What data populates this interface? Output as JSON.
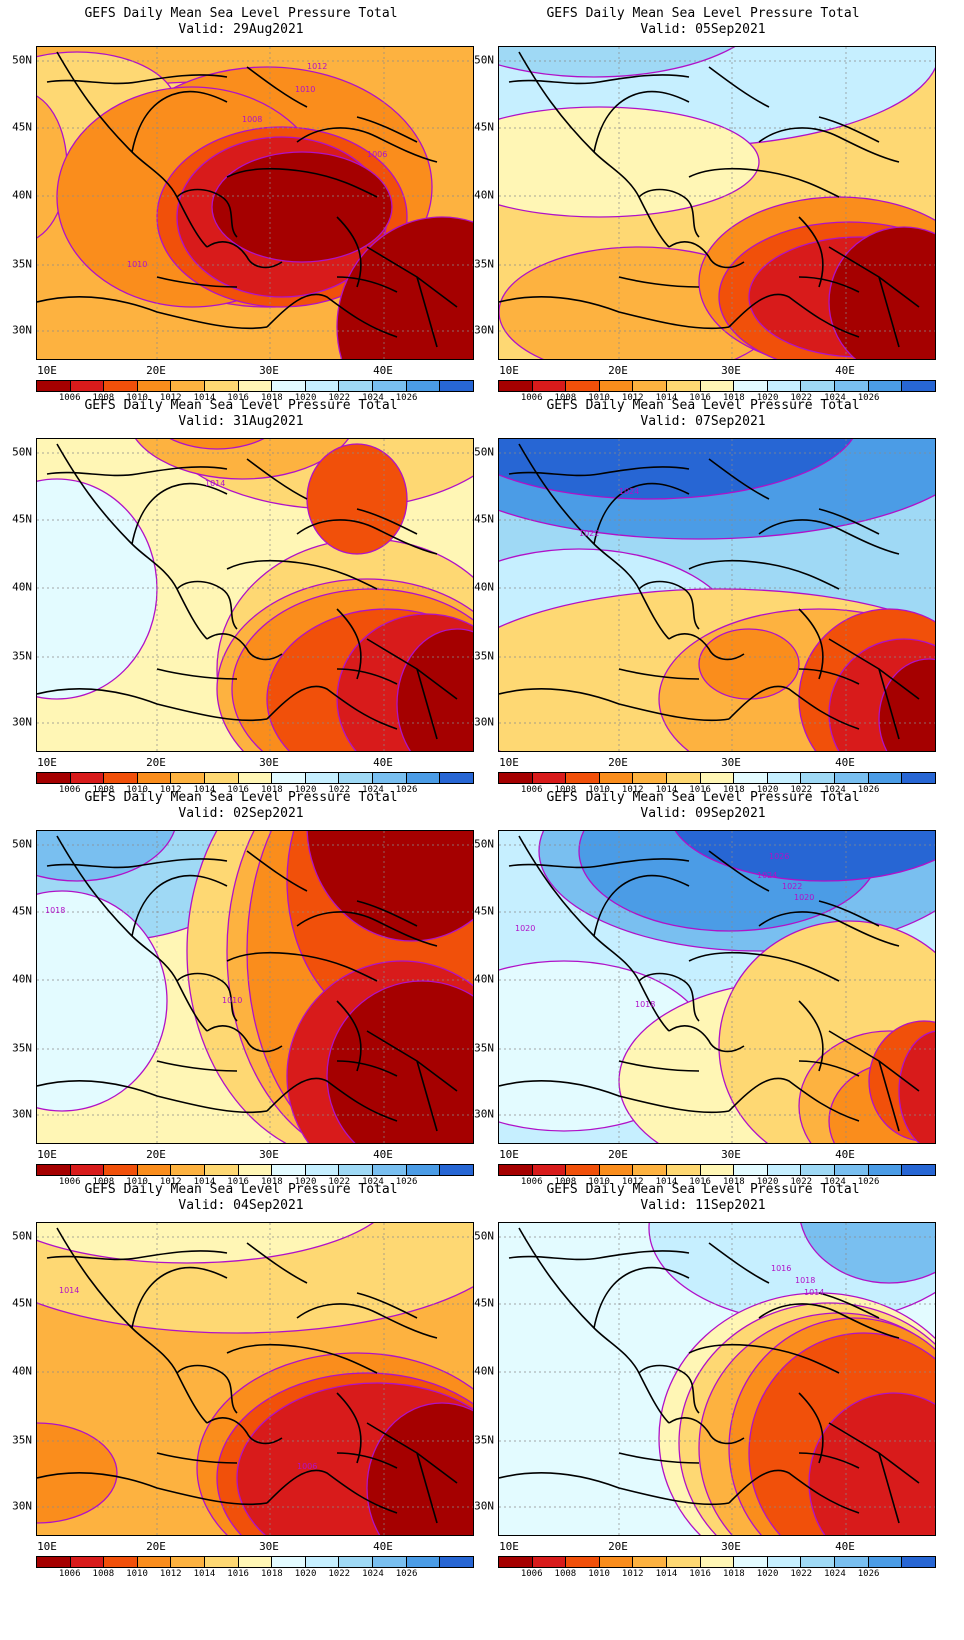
{
  "colorbar": {
    "colors": [
      "#a50000",
      "#d81b1b",
      "#f1500a",
      "#fa8d1c",
      "#fdb240",
      "#fed873",
      "#fff6b5",
      "#e3fbff",
      "#c6efff",
      "#9fd9f5",
      "#79bff0",
      "#4b9ce6",
      "#2766d4"
    ],
    "labels": [
      "1006",
      "1008",
      "1010",
      "1012",
      "1014",
      "1016",
      "1018",
      "1020",
      "1022",
      "1024",
      "1026"
    ]
  },
  "axes": {
    "lat_labels": [
      "50N",
      "45N",
      "40N",
      "35N",
      "30N"
    ],
    "lon_labels": [
      "10E",
      "20E",
      "30E",
      "40E"
    ]
  },
  "panels": [
    {
      "title": "GEFS Daily Mean Sea Level Pressure Total",
      "valid": "Valid: 29Aug2021",
      "bg": "#fdb240",
      "blobs": [
        {
          "x": 20,
          "y": 35,
          "w": 280,
          "h": 100,
          "c": "#fed873"
        },
        {
          "x": -60,
          "y": 5,
          "w": 200,
          "h": 110,
          "c": "#fed873"
        },
        {
          "x": -60,
          "y": 45,
          "w": 90,
          "h": 150,
          "c": "#fdb240"
        },
        {
          "x": 65,
          "y": 20,
          "w": 330,
          "h": 240,
          "c": "#fa8d1c"
        },
        {
          "x": 20,
          "y": 40,
          "w": 270,
          "h": 220,
          "c": "#fa8d1c"
        },
        {
          "x": 120,
          "y": 80,
          "w": 250,
          "h": 180,
          "c": "#f1500a"
        },
        {
          "x": 140,
          "y": 90,
          "w": 210,
          "h": 160,
          "c": "#d81b1b"
        },
        {
          "x": 175,
          "y": 105,
          "w": 180,
          "h": 110,
          "c": "#a50000"
        },
        {
          "x": 300,
          "y": 170,
          "w": 210,
          "h": 220,
          "c": "#a50000"
        }
      ],
      "labels": [
        {
          "t": "1012",
          "x": 270,
          "y": 22
        },
        {
          "t": "1010",
          "x": 258,
          "y": 45
        },
        {
          "t": "1008",
          "x": 205,
          "y": 75
        },
        {
          "t": "1006",
          "x": 330,
          "y": 110
        },
        {
          "t": "1010",
          "x": 90,
          "y": 220
        }
      ]
    },
    {
      "title": "GEFS Daily Mean Sea Level Pressure Total",
      "valid": "Valid: 05Sep2021",
      "bg": "#fed873",
      "blobs": [
        {
          "x": -80,
          "y": -90,
          "w": 520,
          "h": 190,
          "c": "#c6efff"
        },
        {
          "x": -80,
          "y": -120,
          "w": 350,
          "h": 150,
          "c": "#9fd9f5"
        },
        {
          "x": -60,
          "y": 60,
          "w": 320,
          "h": 110,
          "c": "#fff6b5"
        },
        {
          "x": 180,
          "y": 170,
          "w": 320,
          "h": 170,
          "c": "#fdb240"
        },
        {
          "x": 0,
          "y": 200,
          "w": 280,
          "h": 130,
          "c": "#fdb240"
        },
        {
          "x": 200,
          "y": 150,
          "w": 280,
          "h": 170,
          "c": "#fa8d1c"
        },
        {
          "x": 220,
          "y": 175,
          "w": 260,
          "h": 150,
          "c": "#f1500a"
        },
        {
          "x": 250,
          "y": 190,
          "w": 220,
          "h": 120,
          "c": "#d81b1b"
        },
        {
          "x": 330,
          "y": 180,
          "w": 150,
          "h": 150,
          "c": "#a50000"
        }
      ],
      "labels": []
    },
    {
      "title": "GEFS Daily Mean Sea Level Pressure Total",
      "valid": "Valid: 31Aug2021",
      "bg": "#fff6b5",
      "blobs": [
        {
          "x": -80,
          "y": 40,
          "w": 200,
          "h": 220,
          "c": "#e3fbff"
        },
        {
          "x": 120,
          "y": -120,
          "w": 360,
          "h": 190,
          "c": "#fed873"
        },
        {
          "x": 180,
          "y": 100,
          "w": 300,
          "h": 260,
          "c": "#fed873"
        },
        {
          "x": 90,
          "y": -90,
          "w": 230,
          "h": 130,
          "c": "#fdb240"
        },
        {
          "x": 100,
          "y": -100,
          "w": 160,
          "h": 110,
          "c": "#fa8d1c"
        },
        {
          "x": 270,
          "y": 5,
          "w": 100,
          "h": 110,
          "c": "#f1500a"
        },
        {
          "x": 180,
          "y": 140,
          "w": 300,
          "h": 220,
          "c": "#fdb240"
        },
        {
          "x": 195,
          "y": 150,
          "w": 280,
          "h": 200,
          "c": "#fa8d1c"
        },
        {
          "x": 230,
          "y": 170,
          "w": 240,
          "h": 180,
          "c": "#f1500a"
        },
        {
          "x": 300,
          "y": 175,
          "w": 180,
          "h": 170,
          "c": "#d81b1b"
        },
        {
          "x": 360,
          "y": 190,
          "w": 120,
          "h": 150,
          "c": "#a50000"
        }
      ],
      "labels": [
        {
          "t": "1014",
          "x": 168,
          "y": 47
        }
      ]
    },
    {
      "title": "GEFS Daily Mean Sea Level Pressure Total",
      "valid": "Valid: 07Sep2021",
      "bg": "#9fd9f5",
      "blobs": [
        {
          "x": -80,
          "y": -90,
          "w": 560,
          "h": 190,
          "c": "#4b9ce6"
        },
        {
          "x": -60,
          "y": -100,
          "w": 420,
          "h": 160,
          "c": "#2766d4"
        },
        {
          "x": -80,
          "y": 110,
          "w": 320,
          "h": 180,
          "c": "#c6efff"
        },
        {
          "x": -60,
          "y": 150,
          "w": 560,
          "h": 200,
          "c": "#fed873"
        },
        {
          "x": 160,
          "y": 170,
          "w": 320,
          "h": 180,
          "c": "#fdb240"
        },
        {
          "x": 200,
          "y": 190,
          "w": 100,
          "h": 70,
          "c": "#fa8d1c"
        },
        {
          "x": 300,
          "y": 170,
          "w": 180,
          "h": 180,
          "c": "#f1500a"
        },
        {
          "x": 330,
          "y": 200,
          "w": 150,
          "h": 150,
          "c": "#d81b1b"
        },
        {
          "x": 380,
          "y": 220,
          "w": 100,
          "h": 120,
          "c": "#a50000"
        }
      ],
      "labels": [
        {
          "t": "1024",
          "x": 120,
          "y": 55
        },
        {
          "t": "1022",
          "x": 80,
          "y": 97
        }
      ]
    },
    {
      "title": "GEFS Daily Mean Sea Level Pressure Total",
      "valid": "Valid: 02Sep2021",
      "bg": "#fff6b5",
      "blobs": [
        {
          "x": -80,
          "y": -60,
          "w": 300,
          "h": 170,
          "c": "#9fd9f5"
        },
        {
          "x": -60,
          "y": -80,
          "w": 200,
          "h": 130,
          "c": "#79bff0"
        },
        {
          "x": -80,
          "y": 60,
          "w": 210,
          "h": 220,
          "c": "#e3fbff"
        },
        {
          "x": 150,
          "y": -90,
          "w": 330,
          "h": 420,
          "c": "#fed873"
        },
        {
          "x": 190,
          "y": -90,
          "w": 300,
          "h": 420,
          "c": "#fdb240"
        },
        {
          "x": 210,
          "y": -90,
          "w": 270,
          "h": 420,
          "c": "#fa8d1c"
        },
        {
          "x": 250,
          "y": -100,
          "w": 230,
          "h": 300,
          "c": "#f1500a"
        },
        {
          "x": 270,
          "y": -120,
          "w": 210,
          "h": 230,
          "c": "#a50000"
        },
        {
          "x": 250,
          "y": 130,
          "w": 230,
          "h": 230,
          "c": "#d81b1b"
        },
        {
          "x": 290,
          "y": 150,
          "w": 190,
          "h": 190,
          "c": "#a50000"
        }
      ],
      "labels": [
        {
          "t": "1018",
          "x": 8,
          "y": 82
        },
        {
          "t": "1010",
          "x": 185,
          "y": 172
        }
      ]
    },
    {
      "title": "GEFS Daily Mean Sea Level Pressure Total",
      "valid": "Valid: 09Sep2021",
      "bg": "#c6efff",
      "blobs": [
        {
          "x": 40,
          "y": -80,
          "w": 440,
          "h": 200,
          "c": "#79bff0"
        },
        {
          "x": 80,
          "y": -60,
          "w": 300,
          "h": 160,
          "c": "#4b9ce6"
        },
        {
          "x": 170,
          "y": -90,
          "w": 310,
          "h": 140,
          "c": "#2766d4"
        },
        {
          "x": -80,
          "y": 130,
          "w": 290,
          "h": 170,
          "c": "#e3fbff"
        },
        {
          "x": 120,
          "y": 150,
          "w": 360,
          "h": 200,
          "c": "#fff6b5"
        },
        {
          "x": 220,
          "y": 90,
          "w": 260,
          "h": 250,
          "c": "#fed873"
        },
        {
          "x": 300,
          "y": 200,
          "w": 180,
          "h": 150,
          "c": "#fdb240"
        },
        {
          "x": 330,
          "y": 230,
          "w": 150,
          "h": 120,
          "c": "#fa8d1c"
        },
        {
          "x": 370,
          "y": 190,
          "w": 110,
          "h": 120,
          "c": "#f1500a"
        },
        {
          "x": 400,
          "y": 200,
          "w": 80,
          "h": 120,
          "c": "#d81b1b"
        }
      ],
      "labels": [
        {
          "t": "1026",
          "x": 270,
          "y": 28
        },
        {
          "t": "1024",
          "x": 258,
          "y": 47
        },
        {
          "t": "1022",
          "x": 283,
          "y": 58
        },
        {
          "t": "1020",
          "x": 295,
          "y": 69
        },
        {
          "t": "1020",
          "x": 16,
          "y": 100
        },
        {
          "t": "1018",
          "x": 136,
          "y": 176
        }
      ]
    },
    {
      "title": "GEFS Daily Mean Sea Level Pressure Total",
      "valid": "Valid: 04Sep2021",
      "bg": "#fdb240",
      "blobs": [
        {
          "x": -80,
          "y": -90,
          "w": 560,
          "h": 200,
          "c": "#fed873"
        },
        {
          "x": -60,
          "y": -110,
          "w": 420,
          "h": 150,
          "c": "#fff6b5"
        },
        {
          "x": -80,
          "y": 200,
          "w": 160,
          "h": 100,
          "c": "#fa8d1c"
        },
        {
          "x": 160,
          "y": 130,
          "w": 320,
          "h": 230,
          "c": "#fa8d1c"
        },
        {
          "x": 180,
          "y": 150,
          "w": 300,
          "h": 210,
          "c": "#f1500a"
        },
        {
          "x": 200,
          "y": 160,
          "w": 280,
          "h": 190,
          "c": "#d81b1b"
        },
        {
          "x": 330,
          "y": 180,
          "w": 150,
          "h": 170,
          "c": "#a50000"
        }
      ],
      "labels": [
        {
          "t": "1014",
          "x": 22,
          "y": 70
        },
        {
          "t": "1006",
          "x": 260,
          "y": 246
        }
      ]
    },
    {
      "title": "GEFS Daily Mean Sea Level Pressure Total",
      "valid": "Valid: 11Sep2021",
      "bg": "#e3fbff",
      "blobs": [
        {
          "x": 150,
          "y": -90,
          "w": 330,
          "h": 190,
          "c": "#c6efff"
        },
        {
          "x": 300,
          "y": -90,
          "w": 180,
          "h": 150,
          "c": "#79bff0"
        },
        {
          "x": 160,
          "y": 70,
          "w": 320,
          "h": 290,
          "c": "#fff6b5"
        },
        {
          "x": 180,
          "y": 80,
          "w": 300,
          "h": 280,
          "c": "#fed873"
        },
        {
          "x": 200,
          "y": 90,
          "w": 280,
          "h": 270,
          "c": "#fdb240"
        },
        {
          "x": 230,
          "y": 95,
          "w": 250,
          "h": 260,
          "c": "#fa8d1c"
        },
        {
          "x": 250,
          "y": 110,
          "w": 230,
          "h": 240,
          "c": "#f1500a"
        },
        {
          "x": 310,
          "y": 170,
          "w": 170,
          "h": 180,
          "c": "#d81b1b"
        }
      ],
      "labels": [
        {
          "t": "1016",
          "x": 272,
          "y": 48
        },
        {
          "t": "1018",
          "x": 296,
          "y": 60
        },
        {
          "t": "1014",
          "x": 305,
          "y": 72
        }
      ]
    }
  ]
}
